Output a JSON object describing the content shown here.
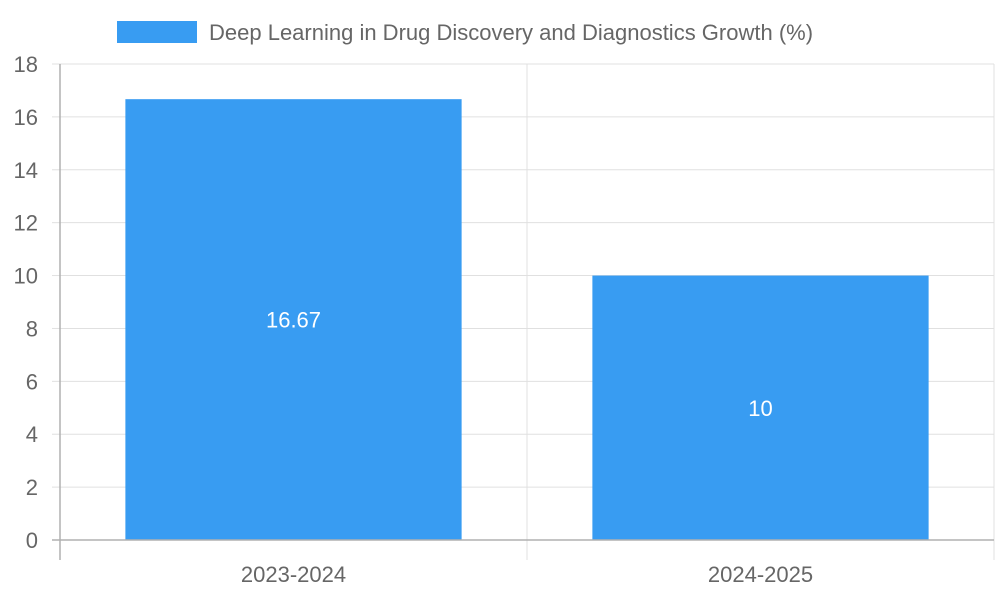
{
  "chart_data": {
    "type": "bar",
    "categories": [
      "2023-2024",
      "2024-2025"
    ],
    "series": [
      {
        "name": "Deep Learning in Drug Discovery and Diagnostics Growth (%)",
        "values": [
          16.67,
          10
        ],
        "data_labels": [
          "16.67",
          "10"
        ],
        "color": "#389cf2"
      }
    ],
    "ylim": [
      0,
      18
    ],
    "yticks": [
      0,
      2,
      4,
      6,
      8,
      10,
      12,
      14,
      16,
      18
    ],
    "grid": true,
    "legend_position": "top-center"
  }
}
